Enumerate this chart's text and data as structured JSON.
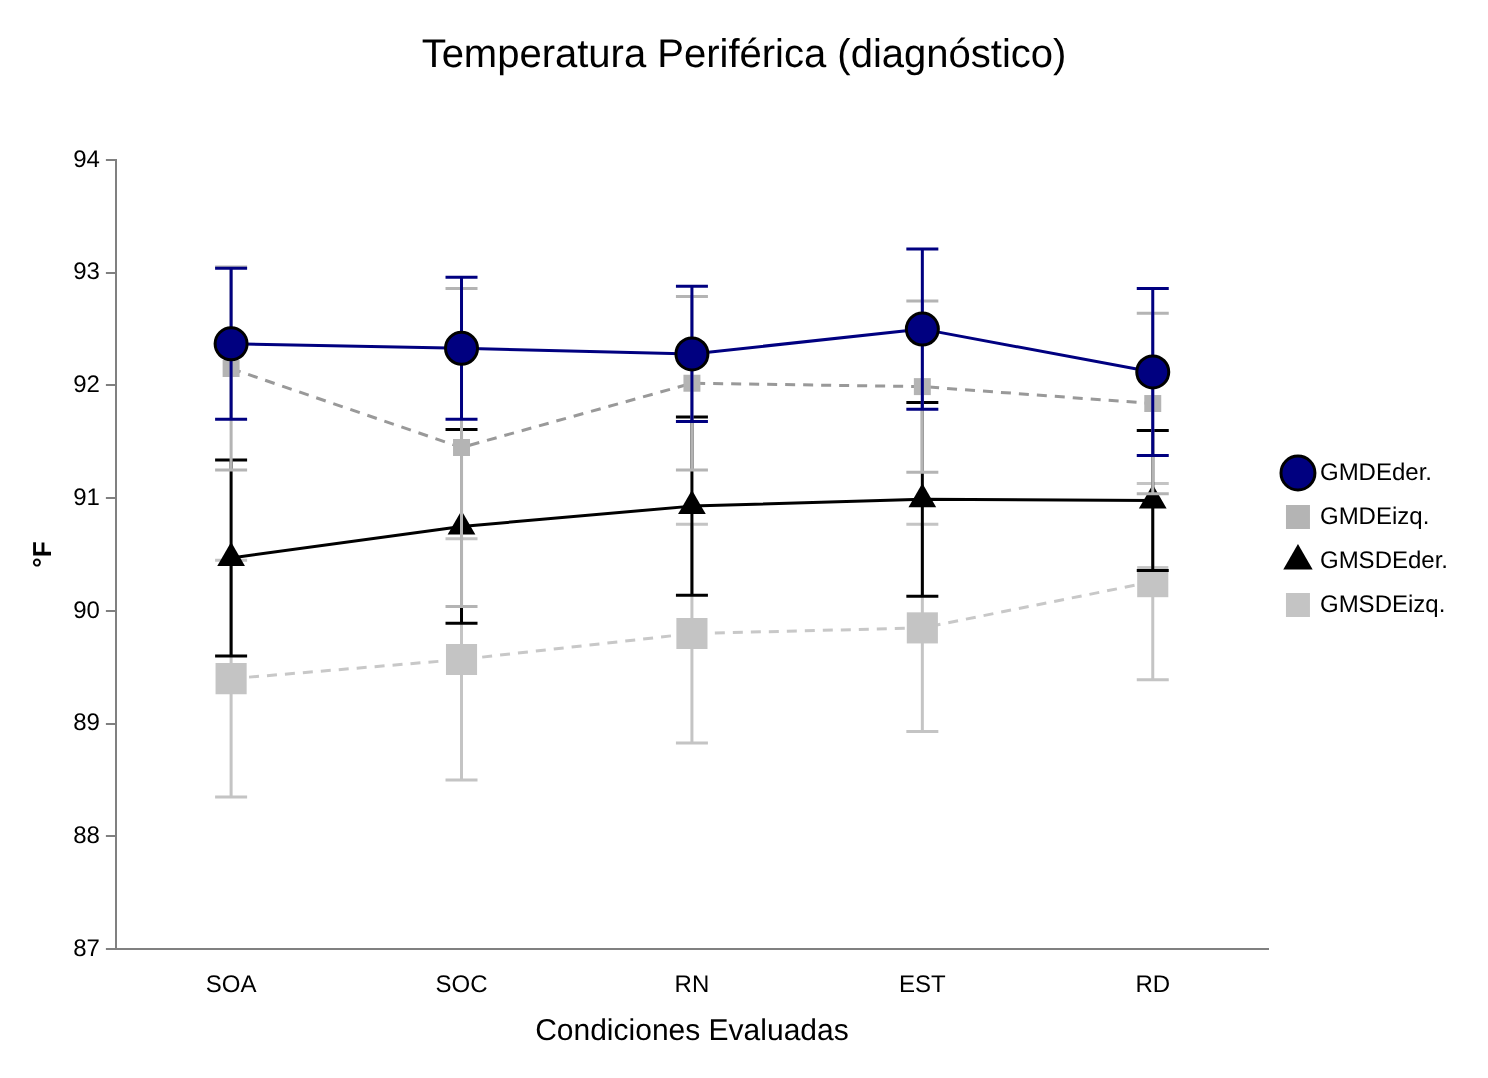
{
  "chart_data": {
    "type": "line",
    "title": "Temperatura Periférica (diagnóstico)",
    "xlabel": "Condiciones Evaluadas",
    "ylabel": "°F",
    "categories": [
      "SOA",
      "SOC",
      "RN",
      "EST",
      "RD"
    ],
    "series": [
      {
        "name": "GMDEder.",
        "color": "#000080",
        "marker": "circle",
        "line_style": "solid",
        "values": [
          92.37,
          92.33,
          92.28,
          92.5,
          92.12
        ],
        "errors": [
          0.67,
          0.63,
          0.6,
          0.71,
          0.74
        ]
      },
      {
        "name": "GMDEizq.",
        "color": "#b4b4b4",
        "marker": "square",
        "line_style": "dashed",
        "values": [
          92.15,
          91.45,
          92.02,
          91.99,
          91.84
        ],
        "errors": [
          0.9,
          1.41,
          0.77,
          0.76,
          0.8
        ]
      },
      {
        "name": "GMSDEder.",
        "color": "#000000",
        "marker": "triangle",
        "line_style": "solid",
        "values": [
          90.47,
          90.75,
          90.93,
          90.99,
          90.98
        ],
        "errors": [
          0.87,
          0.86,
          0.79,
          0.86,
          0.62
        ]
      },
      {
        "name": "GMSDEizq.",
        "color": "#c4c4c4",
        "marker": "square",
        "line_style": "dashed",
        "values": [
          89.4,
          89.57,
          89.8,
          89.85,
          90.26
        ],
        "errors": [
          1.05,
          1.07,
          0.97,
          0.92,
          0.87
        ]
      }
    ],
    "ylim": [
      87,
      94
    ],
    "yticks": [
      87,
      88,
      89,
      90,
      91,
      92,
      93,
      94
    ],
    "grid": false,
    "legend": "right"
  }
}
